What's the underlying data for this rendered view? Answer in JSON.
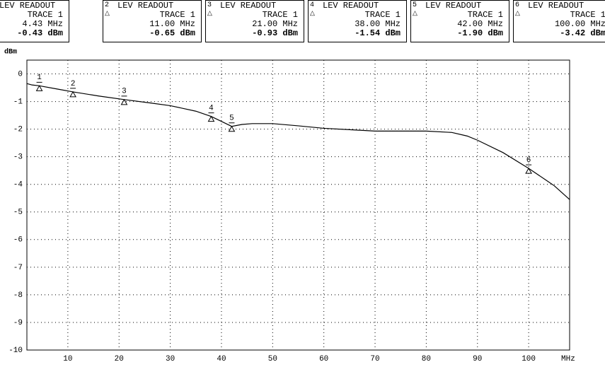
{
  "readouts": [
    {
      "title": "LEV READOUT",
      "trace": "TRACE 1",
      "freq": "4.43 MHz",
      "level": "-0.43 dBm"
    },
    {
      "number": "2",
      "title": "LEV READOUT",
      "trace": "TRACE 1",
      "freq": "11.00 MHz",
      "level": "-0.65 dBm"
    },
    {
      "number": "3",
      "title": "LEV READOUT",
      "trace": "TRACE 1",
      "freq": "21.00 MHz",
      "level": "-0.93 dBm"
    },
    {
      "number": "4",
      "title": "LEV READOUT",
      "trace": "TRACE 1",
      "freq": "38.00 MHz",
      "level": "-1.54 dBm"
    },
    {
      "number": "5",
      "title": "LEV READOUT",
      "trace": "TRACE 1",
      "freq": "42.00 MHz",
      "level": "-1.90 dBm"
    },
    {
      "number": "6",
      "title": "LEV READOUT",
      "trace": "TRACE 1",
      "freq": "100.00 MHz",
      "level": "-3.42 dBm"
    }
  ],
  "chart_data": {
    "type": "line",
    "y_label": "dBm",
    "x_label": "MHz",
    "x": [
      2,
      3,
      4.43,
      8,
      11,
      16,
      21,
      26,
      30,
      35,
      38,
      40,
      42,
      44,
      46,
      50,
      55,
      60,
      65,
      70,
      80,
      85,
      88,
      90,
      95,
      100,
      105,
      108
    ],
    "series": [
      {
        "name": "TRACE 1",
        "color": "#000000",
        "values": [
          -0.35,
          -0.4,
          -0.43,
          -0.55,
          -0.65,
          -0.8,
          -0.93,
          -1.05,
          -1.15,
          -1.35,
          -1.54,
          -1.72,
          -1.9,
          -1.83,
          -1.8,
          -1.8,
          -1.88,
          -1.97,
          -2.02,
          -2.07,
          -2.07,
          -2.12,
          -2.25,
          -2.4,
          -2.85,
          -3.42,
          -4.05,
          -4.55
        ]
      }
    ],
    "markers": [
      {
        "label": "1",
        "x": 4.43,
        "y": -0.43
      },
      {
        "label": "2",
        "x": 11,
        "y": -0.65
      },
      {
        "label": "3",
        "x": 21,
        "y": -0.93
      },
      {
        "label": "4",
        "x": 38,
        "y": -1.54
      },
      {
        "label": "5",
        "x": 42,
        "y": -1.9
      },
      {
        "label": "6",
        "x": 100,
        "y": -3.42
      }
    ],
    "xlim": [
      2,
      108
    ],
    "ylim": [
      -10,
      0.5
    ],
    "xticks": [
      10,
      20,
      30,
      40,
      50,
      60,
      70,
      80,
      90,
      100
    ],
    "yticks": [
      0,
      -1,
      -2,
      -3,
      -4,
      -5,
      -6,
      -7,
      -8,
      -9,
      -10
    ],
    "grid": true
  }
}
